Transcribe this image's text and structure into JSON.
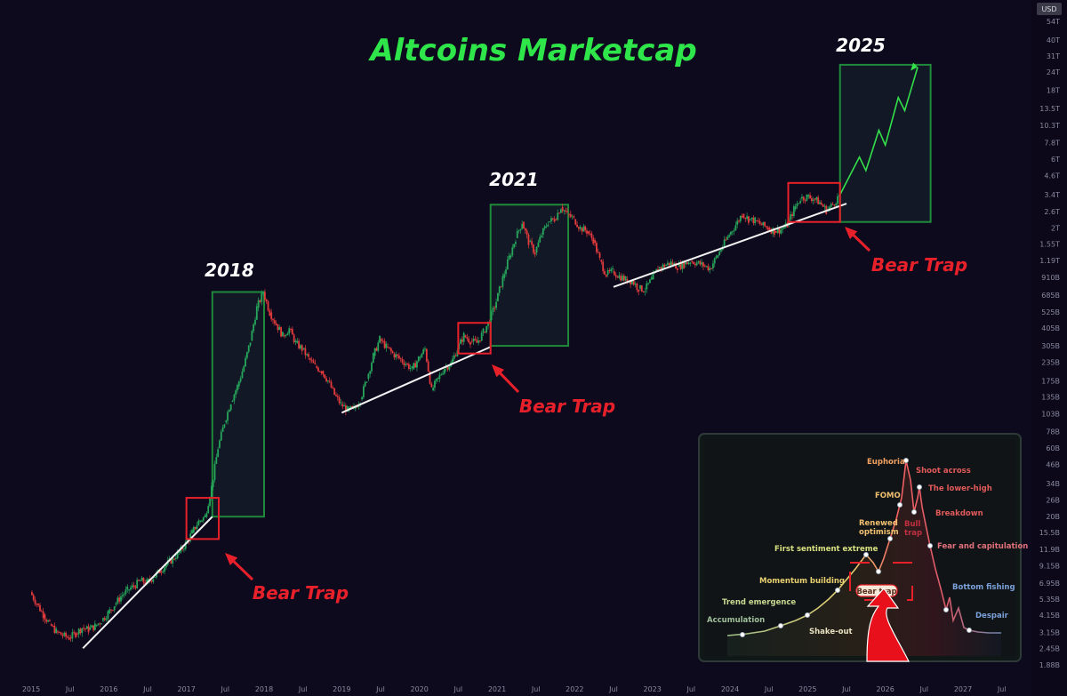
{
  "title": "Altcoins Marketcap",
  "currency_badge": "USD",
  "colors": {
    "background": "#0e0a1e",
    "up": "#26a65b",
    "down": "#e33b3b",
    "title": "#2ee64a",
    "trap": "#e8202a",
    "box": "#1f8a3a"
  },
  "chart_data": {
    "type": "candlestick",
    "title": "Altcoins Marketcap",
    "y_scale": "log",
    "ylim": [
      "1.88B",
      "54T"
    ],
    "x_ticks": [
      "2015",
      "Jul",
      "2016",
      "Jul",
      "2017",
      "Jul",
      "2018",
      "Jul",
      "2019",
      "Jul",
      "2020",
      "Jul",
      "2021",
      "Jul",
      "2022",
      "Jul",
      "2023",
      "Jul",
      "2024",
      "Jul",
      "2025",
      "Jul",
      "2026",
      "Jul",
      "2027",
      "Jul"
    ],
    "y_ticks": [
      "54T",
      "40T",
      "31T",
      "24T",
      "18T",
      "13.5T",
      "10.3T",
      "7.8T",
      "6T",
      "4.6T",
      "3.4T",
      "2.6T",
      "2T",
      "1.55T",
      "1.19T",
      "910B",
      "685B",
      "525B",
      "405B",
      "305B",
      "235B",
      "175B",
      "135B",
      "103B",
      "78B",
      "60B",
      "46B",
      "34B",
      "26B",
      "20B",
      "15.5B",
      "11.9B",
      "9.15B",
      "6.95B",
      "5.35B",
      "4.15B",
      "3.15B",
      "2.45B",
      "1.88B"
    ],
    "series": [
      {
        "values": [
          [
            "2015-01",
            6.0
          ],
          [
            "2015-02",
            5.0
          ],
          [
            "2015-03",
            4.2
          ],
          [
            "2015-04",
            3.6
          ],
          [
            "2015-05",
            3.2
          ],
          [
            "2015-06",
            3.0
          ],
          [
            "2015-07",
            2.9
          ],
          [
            "2015-08",
            3.1
          ],
          [
            "2015-09",
            3.4
          ],
          [
            "2015-10",
            3.3
          ],
          [
            "2015-11",
            3.5
          ],
          [
            "2015-12",
            3.8
          ],
          [
            "2016-01",
            4.3
          ],
          [
            "2016-02",
            4.9
          ],
          [
            "2016-03",
            5.6
          ],
          [
            "2016-04",
            6.2
          ],
          [
            "2016-05",
            6.6
          ],
          [
            "2016-06",
            7.2
          ],
          [
            "2016-07",
            7.0
          ],
          [
            "2016-08",
            7.6
          ],
          [
            "2016-09",
            8.4
          ],
          [
            "2016-10",
            9.3
          ],
          [
            "2016-11",
            10.2
          ],
          [
            "2016-12",
            11.3
          ],
          [
            "2017-01",
            13.0
          ],
          [
            "2017-02",
            15.5
          ],
          [
            "2017-03",
            18.5
          ],
          [
            "2017-04",
            20.0
          ],
          [
            "2017-05",
            32.0
          ],
          [
            "2017-06",
            60.0
          ],
          [
            "2017-07",
            90.0
          ],
          [
            "2017-08",
            125.0
          ],
          [
            "2017-09",
            160.0
          ],
          [
            "2017-10",
            220.0
          ],
          [
            "2017-11",
            330.0
          ],
          [
            "2017-12",
            560.0
          ],
          [
            "2018-01",
            720.0
          ],
          [
            "2018-02",
            520.0
          ],
          [
            "2018-03",
            430.0
          ],
          [
            "2018-04",
            360.0
          ],
          [
            "2018-05",
            400.0
          ],
          [
            "2018-06",
            320.0
          ],
          [
            "2018-07",
            290.0
          ],
          [
            "2018-08",
            250.0
          ],
          [
            "2018-09",
            220.0
          ],
          [
            "2018-10",
            205.0
          ],
          [
            "2018-11",
            175.0
          ],
          [
            "2018-12",
            140.0
          ],
          [
            "2019-01",
            120.0
          ],
          [
            "2019-02",
            110.0
          ],
          [
            "2019-03",
            112.0
          ],
          [
            "2019-04",
            130.0
          ],
          [
            "2019-05",
            180.0
          ],
          [
            "2019-06",
            260.0
          ],
          [
            "2019-07",
            340.0
          ],
          [
            "2019-08",
            300.0
          ],
          [
            "2019-09",
            270.0
          ],
          [
            "2019-10",
            250.0
          ],
          [
            "2019-11",
            230.0
          ],
          [
            "2019-12",
            210.0
          ],
          [
            "2020-01",
            250.0
          ],
          [
            "2020-02",
            290.0
          ],
          [
            "2020-03",
            150.0
          ],
          [
            "2020-04",
            180.0
          ],
          [
            "2020-05",
            215.0
          ],
          [
            "2020-06",
            230.0
          ],
          [
            "2020-07",
            290.0
          ],
          [
            "2020-08",
            360.0
          ],
          [
            "2020-09",
            330.0
          ],
          [
            "2020-10",
            320.0
          ],
          [
            "2020-11",
            380.0
          ],
          [
            "2020-12",
            460.0
          ],
          [
            "2021-01",
            620.0
          ],
          [
            "2021-02",
            900.0
          ],
          [
            "2021-03",
            1250.0
          ],
          [
            "2021-04",
            1700.0
          ],
          [
            "2021-05",
            2200.0
          ],
          [
            "2021-06",
            1600.0
          ],
          [
            "2021-07",
            1350.0
          ],
          [
            "2021-08",
            1800.0
          ],
          [
            "2021-09",
            2200.0
          ],
          [
            "2021-10",
            2300.0
          ],
          [
            "2021-11",
            2800.0
          ],
          [
            "2021-12",
            2500.0
          ],
          [
            "2022-01",
            2300.0
          ],
          [
            "2022-02",
            2000.0
          ],
          [
            "2022-03",
            1900.0
          ],
          [
            "2022-04",
            1650.0
          ],
          [
            "2022-05",
            1200.0
          ],
          [
            "2022-06",
            950.0
          ],
          [
            "2022-07",
            1000.0
          ],
          [
            "2022-08",
            930.0
          ],
          [
            "2022-09",
            880.0
          ],
          [
            "2022-10",
            860.0
          ],
          [
            "2022-11",
            760.0
          ],
          [
            "2022-12",
            750.0
          ],
          [
            "2023-01",
            880.0
          ],
          [
            "2023-02",
            1050.0
          ],
          [
            "2023-03",
            1100.0
          ],
          [
            "2023-04",
            1150.0
          ],
          [
            "2023-05",
            1080.0
          ],
          [
            "2023-06",
            1120.0
          ],
          [
            "2023-07",
            1180.0
          ],
          [
            "2023-08",
            1150.0
          ],
          [
            "2023-09",
            1100.0
          ],
          [
            "2023-10",
            1050.0
          ],
          [
            "2023-11",
            1250.0
          ],
          [
            "2023-12",
            1500.0
          ],
          [
            "2024-01",
            1800.0
          ],
          [
            "2024-02",
            2100.0
          ],
          [
            "2024-03",
            2500.0
          ],
          [
            "2024-04",
            2300.0
          ],
          [
            "2024-05",
            2250.0
          ],
          [
            "2024-06",
            2100.0
          ],
          [
            "2024-07",
            2000.0
          ],
          [
            "2024-08",
            1900.0
          ],
          [
            "2024-09",
            1950.0
          ],
          [
            "2024-10",
            2100.0
          ],
          [
            "2024-11",
            2700.0
          ],
          [
            "2024-12",
            3200.0
          ],
          [
            "2025-01",
            3300.0
          ],
          [
            "2025-02",
            3200.0
          ],
          [
            "2025-03",
            3000.0
          ],
          [
            "2025-04",
            2650.0
          ],
          [
            "2025-05",
            2900.0
          ],
          [
            "2025-06",
            3350.0
          ]
        ]
      }
    ],
    "projection": [
      [
        "2025-06",
        3400.0
      ],
      [
        "2025-09",
        6200.0
      ],
      [
        "2025-10",
        5000.0
      ],
      [
        "2025-12",
        9500.0
      ],
      [
        "2026-01",
        7500.0
      ],
      [
        "2026-03",
        16000.0
      ],
      [
        "2026-04",
        13000.0
      ],
      [
        "2026-06",
        26000.0
      ]
    ],
    "annotations": [
      {
        "text": "2018",
        "kind": "cycle-box",
        "from": "2017-05",
        "to": "2018-01"
      },
      {
        "text": "2021",
        "kind": "cycle-box",
        "from": "2020-12",
        "to": "2021-12"
      },
      {
        "text": "2025",
        "kind": "cycle-box",
        "from": "2025-06",
        "to": "2026-08"
      },
      {
        "text": "Bear Trap",
        "kind": "trap",
        "near": "2017-03"
      },
      {
        "text": "Bear Trap",
        "kind": "trap",
        "near": "2020-09"
      },
      {
        "text": "Bear Trap",
        "kind": "trap",
        "near": "2025-02"
      }
    ],
    "trendlines": [
      [
        "2015-09",
        "2017-05"
      ],
      [
        "2019-01",
        "2020-12"
      ],
      [
        "2022-07",
        "2025-07"
      ]
    ]
  },
  "inset": {
    "labels": [
      "Euphoria",
      "Shoot across",
      "FOMO",
      "The lower-high",
      "Renewed optimism",
      "Bull trap",
      "Breakdown",
      "First sentiment extreme",
      "Fear and capitulation",
      "Momentum building",
      "Bear trap",
      "Bottom fishing",
      "Trend emergence",
      "Accumulation",
      "Shake-out",
      "Despair"
    ]
  }
}
